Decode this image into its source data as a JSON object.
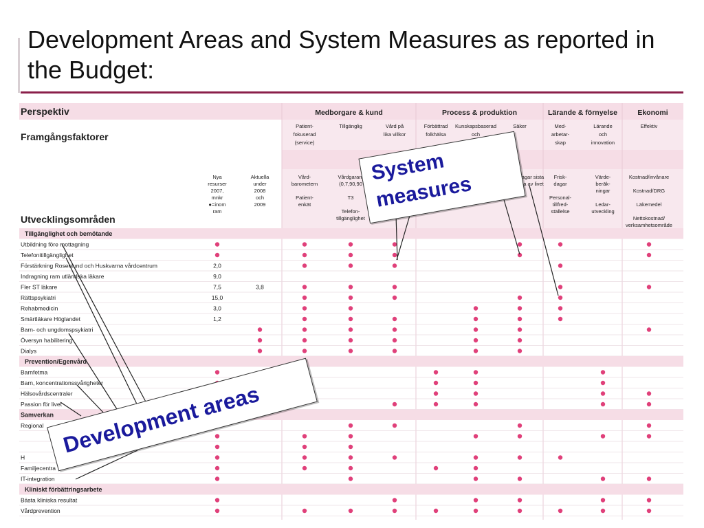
{
  "title": "Development Areas and System Measures as reported in the Budget:",
  "callouts": {
    "system_measures": [
      "System",
      "measures"
    ],
    "development_areas": "Development areas"
  },
  "colors": {
    "accent": "#8a1f4a",
    "dot": "#e0407a",
    "band": "#f6dde6",
    "header_bg": "#f8e8ee",
    "callout_text": "#1a1a9c"
  },
  "table": {
    "perspektiv": "Perspektiv",
    "framgangsfaktorer": "Framgångsfaktorer",
    "utvecklingsomraden": "Utvecklingsområden",
    "resource_headers": [
      [
        "Nya",
        "resurser",
        "2007,",
        "mnkr",
        "●=inom",
        "ram"
      ],
      [
        "Aktuella",
        "under",
        "2008",
        "och",
        "2009"
      ]
    ],
    "perspectives": [
      {
        "label": "Medborgare & kund",
        "cols": [
          3,
          5
        ]
      },
      {
        "label": "Process & produktion",
        "cols": [
          6,
          8
        ]
      },
      {
        "label": "Lärande & förnyelse",
        "cols": [
          9,
          10
        ]
      },
      {
        "label": "Ekonomi",
        "cols": [
          11,
          11
        ]
      }
    ],
    "factors": [
      [
        "Patient-",
        "fokuserad",
        "(service)"
      ],
      [
        "Tillgänglig"
      ],
      [
        "Vård på",
        "lika villkor"
      ],
      [
        "Förbättrad",
        "folkhälsa"
      ],
      [
        "Kunskapsbaserad",
        "och"
      ],
      [
        "Säker"
      ],
      [
        "Med-",
        "arbetar-",
        "skap"
      ],
      [
        "Lärande",
        "och",
        "innovation"
      ],
      [
        "Effektiv"
      ]
    ],
    "measures": [
      [
        "Vård-",
        "barometern",
        "",
        "Patient-",
        "enkät"
      ],
      [
        "Vårdgarant",
        "(0,7,90,90",
        "",
        "T3",
        "",
        "Telefon-",
        "tillgänglighet"
      ],
      [],
      [],
      [],
      [
        "Antal vårddagar sista",
        "6 månaderna av livet"
      ],
      [
        "Frisk-",
        "dagar",
        "",
        "Personal-",
        "tillfred-",
        "ställelse"
      ],
      [
        "Värde-",
        "berāk-",
        "ningar",
        "",
        "Ledar-",
        "utveckling"
      ],
      [
        "Kostnad/invånare",
        "",
        "Kostnad/DRG",
        "",
        "Läkemedel",
        "",
        "Nettokostnad/",
        "verksamhetsområde"
      ]
    ],
    "rows": [
      {
        "type": "group",
        "label": "Tillgänglighet och bemötande"
      },
      {
        "label": "Utbildning före mottagning",
        "nya": "●",
        "akt": "",
        "dots": [
          1,
          1,
          1,
          0,
          0,
          1,
          1,
          0,
          1
        ]
      },
      {
        "label": "Telefonitillgänglighet",
        "nya": "●",
        "akt": "",
        "dots": [
          1,
          1,
          1,
          0,
          0,
          1,
          0,
          0,
          1
        ]
      },
      {
        "label": "Förstärkning Rosenlund och Huskvarna vårdcentrum",
        "nya": "2,0",
        "akt": "",
        "dots": [
          1,
          1,
          1,
          0,
          0,
          0,
          1,
          0,
          0
        ]
      },
      {
        "label": "Indragning ram utländska läkare",
        "nya": "9,0",
        "akt": "",
        "dots": [
          0,
          0,
          0,
          0,
          0,
          0,
          0,
          0,
          0
        ]
      },
      {
        "label": "Fler ST läkare",
        "nya": "7,5",
        "akt": "3,8",
        "dots": [
          1,
          1,
          1,
          0,
          0,
          0,
          1,
          0,
          1
        ]
      },
      {
        "label": "Rättspsykiatri",
        "nya": "15,0",
        "akt": "",
        "dots": [
          1,
          1,
          1,
          0,
          0,
          1,
          1,
          0,
          0
        ]
      },
      {
        "label": "Rehabmedicin",
        "nya": "3,0",
        "akt": "",
        "dots": [
          1,
          1,
          0,
          0,
          1,
          1,
          1,
          0,
          0
        ]
      },
      {
        "label": "Smärtläkare Höglandet",
        "nya": "1,2",
        "akt": "",
        "dots": [
          1,
          1,
          1,
          0,
          1,
          1,
          1,
          0,
          0
        ]
      },
      {
        "label": "Barn- och ungdomspsykiatri",
        "nya": "",
        "akt": "●",
        "dots": [
          1,
          1,
          1,
          0,
          1,
          1,
          0,
          0,
          1
        ]
      },
      {
        "label": "Översyn habilitering",
        "nya": "",
        "akt": "●",
        "dots": [
          1,
          1,
          1,
          0,
          1,
          1,
          0,
          0,
          0
        ]
      },
      {
        "label": "Dialys",
        "nya": "",
        "akt": "●",
        "dots": [
          1,
          1,
          1,
          0,
          1,
          1,
          0,
          0,
          0
        ]
      },
      {
        "type": "group",
        "label": "Prevention/Egenvård"
      },
      {
        "label": "Barnfetma",
        "nya": "●",
        "akt": "",
        "dots": [
          0,
          0,
          0,
          1,
          1,
          0,
          0,
          1,
          0
        ]
      },
      {
        "label": "Barn, koncentrationssvårigheter",
        "nya": "●",
        "akt": "",
        "dots": [
          0,
          0,
          0,
          1,
          1,
          0,
          0,
          1,
          0
        ]
      },
      {
        "label": "Hälsovårdscentraler",
        "nya": "",
        "akt": "",
        "dots": [
          0,
          0,
          0,
          1,
          1,
          0,
          0,
          1,
          1
        ]
      },
      {
        "label": "Passion för livet",
        "nya": "",
        "akt": "",
        "dots": [
          0,
          0,
          1,
          1,
          1,
          0,
          0,
          1,
          1
        ]
      },
      {
        "type": "heading",
        "label": "Samverkan"
      },
      {
        "label": "Regional",
        "nya": "",
        "akt": "",
        "dots": [
          0,
          1,
          1,
          0,
          0,
          1,
          0,
          0,
          1
        ]
      },
      {
        "label": "",
        "nya": "●",
        "akt": "",
        "dots": [
          1,
          1,
          0,
          0,
          1,
          1,
          0,
          1,
          1
        ]
      },
      {
        "label": "",
        "nya": "●",
        "akt": "",
        "dots": [
          1,
          1,
          0,
          0,
          0,
          0,
          0,
          0,
          0
        ]
      },
      {
        "label": "H",
        "nya": "●",
        "akt": "",
        "dots": [
          1,
          1,
          1,
          0,
          1,
          1,
          1,
          0,
          0
        ]
      },
      {
        "label": "Familjecentra",
        "nya": "●",
        "akt": "",
        "dots": [
          1,
          1,
          0,
          1,
          1,
          0,
          0,
          0,
          0
        ]
      },
      {
        "label": "IT-integration",
        "nya": "●",
        "akt": "",
        "dots": [
          0,
          1,
          0,
          0,
          1,
          1,
          0,
          1,
          1
        ]
      },
      {
        "type": "group",
        "label": "Kliniskt förbättringsarbete"
      },
      {
        "label": "Bästa kliniska resultat",
        "nya": "●",
        "akt": "",
        "dots": [
          0,
          0,
          1,
          0,
          1,
          1,
          0,
          1,
          1
        ]
      },
      {
        "label": "Vårdprevention",
        "nya": "●",
        "akt": "",
        "dots": [
          1,
          1,
          1,
          1,
          1,
          1,
          1,
          1,
          1
        ]
      }
    ]
  }
}
